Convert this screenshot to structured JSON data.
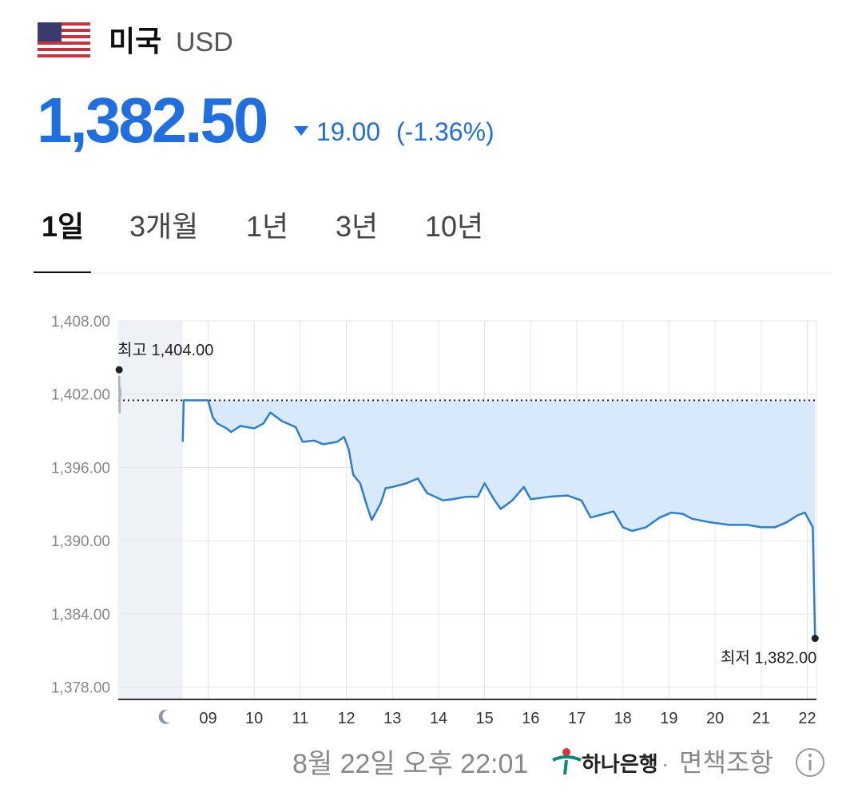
{
  "header": {
    "country": "미국",
    "currency": "USD"
  },
  "quote": {
    "price": "1,382.50",
    "change": "19.00",
    "change_percent": "(-1.36%)"
  },
  "tabs": {
    "items": [
      "1일",
      "3개월",
      "1년",
      "3년",
      "10년"
    ],
    "active": 0
  },
  "chart_data": {
    "type": "line",
    "xlim": [
      7.05,
      22.2
    ],
    "xticks": [
      {
        "value": 9,
        "label": "09"
      },
      10,
      11,
      12,
      13,
      14,
      15,
      16,
      17,
      18,
      19,
      20,
      21,
      22
    ],
    "ylim": [
      1377,
      1408
    ],
    "yticks": [
      {
        "value": 1408,
        "label": "1,408.00"
      },
      {
        "value": 1402,
        "label": "1,402.00"
      },
      {
        "value": 1396,
        "label": "1,396.00"
      },
      {
        "value": 1390,
        "label": "1,390.00"
      },
      {
        "value": 1384,
        "label": "1,384.00"
      },
      {
        "value": 1378,
        "label": "1,378.00"
      }
    ],
    "grid": true,
    "reference_line": 1401.5,
    "area_color": "#d8e9fb",
    "shaded_xrange": [
      7.05,
      8.45
    ],
    "series": [
      {
        "color": "#aab4c0",
        "x": [
          7.07,
          7.08,
          7.09,
          7.1
        ],
        "values": [
          1403.5,
          1400.5,
          1402.5,
          1401.8
        ]
      },
      {
        "color": "#2a7fd4",
        "x": [
          8.45,
          8.47,
          9.0,
          9.1,
          9.2,
          9.4,
          9.5,
          9.7,
          10.0,
          10.2,
          10.35,
          10.6,
          10.9,
          11.05,
          11.3,
          11.5,
          11.8,
          11.95,
          12.05,
          12.15,
          12.3,
          12.45,
          12.55,
          12.75,
          12.85,
          13.0,
          13.3,
          13.55,
          13.75,
          14.1,
          14.3,
          14.6,
          14.85,
          15.0,
          15.2,
          15.35,
          15.6,
          15.85,
          16.0,
          16.4,
          16.8,
          17.1,
          17.3,
          17.6,
          17.8,
          18.0,
          18.2,
          18.5,
          18.8,
          19.05,
          19.3,
          19.5,
          19.9,
          20.3,
          20.7,
          21.0,
          21.3,
          21.55,
          21.8,
          21.95,
          22.12,
          22.17
        ],
        "values": [
          1398.1,
          1401.5,
          1401.5,
          1400.1,
          1399.6,
          1399.2,
          1398.9,
          1399.4,
          1399.2,
          1399.6,
          1400.5,
          1399.8,
          1399.3,
          1398.1,
          1398.2,
          1397.9,
          1398.1,
          1398.5,
          1397.5,
          1395.4,
          1394.7,
          1392.8,
          1391.7,
          1393.1,
          1394.3,
          1394.4,
          1394.7,
          1395.1,
          1393.9,
          1393.3,
          1393.4,
          1393.6,
          1393.6,
          1394.7,
          1393.4,
          1392.6,
          1393.3,
          1394.4,
          1393.4,
          1393.6,
          1393.7,
          1393.3,
          1391.9,
          1392.2,
          1392.4,
          1391.1,
          1390.8,
          1391.1,
          1391.9,
          1392.3,
          1392.2,
          1391.8,
          1391.5,
          1391.3,
          1391.3,
          1391.1,
          1391.1,
          1391.5,
          1392.1,
          1392.3,
          1391.1,
          1382
        ]
      }
    ],
    "annotations": [
      {
        "x": 7.07,
        "value": 1404,
        "label": "최고 1,404.00"
      },
      {
        "x": 22.17,
        "value": 1382,
        "label": "최저 1,382.00"
      }
    ]
  },
  "footer": {
    "timestamp": "8월 22일 오후 22:01",
    "bank": "하나은행",
    "separator": "·",
    "disclaimer": "면책조항"
  }
}
